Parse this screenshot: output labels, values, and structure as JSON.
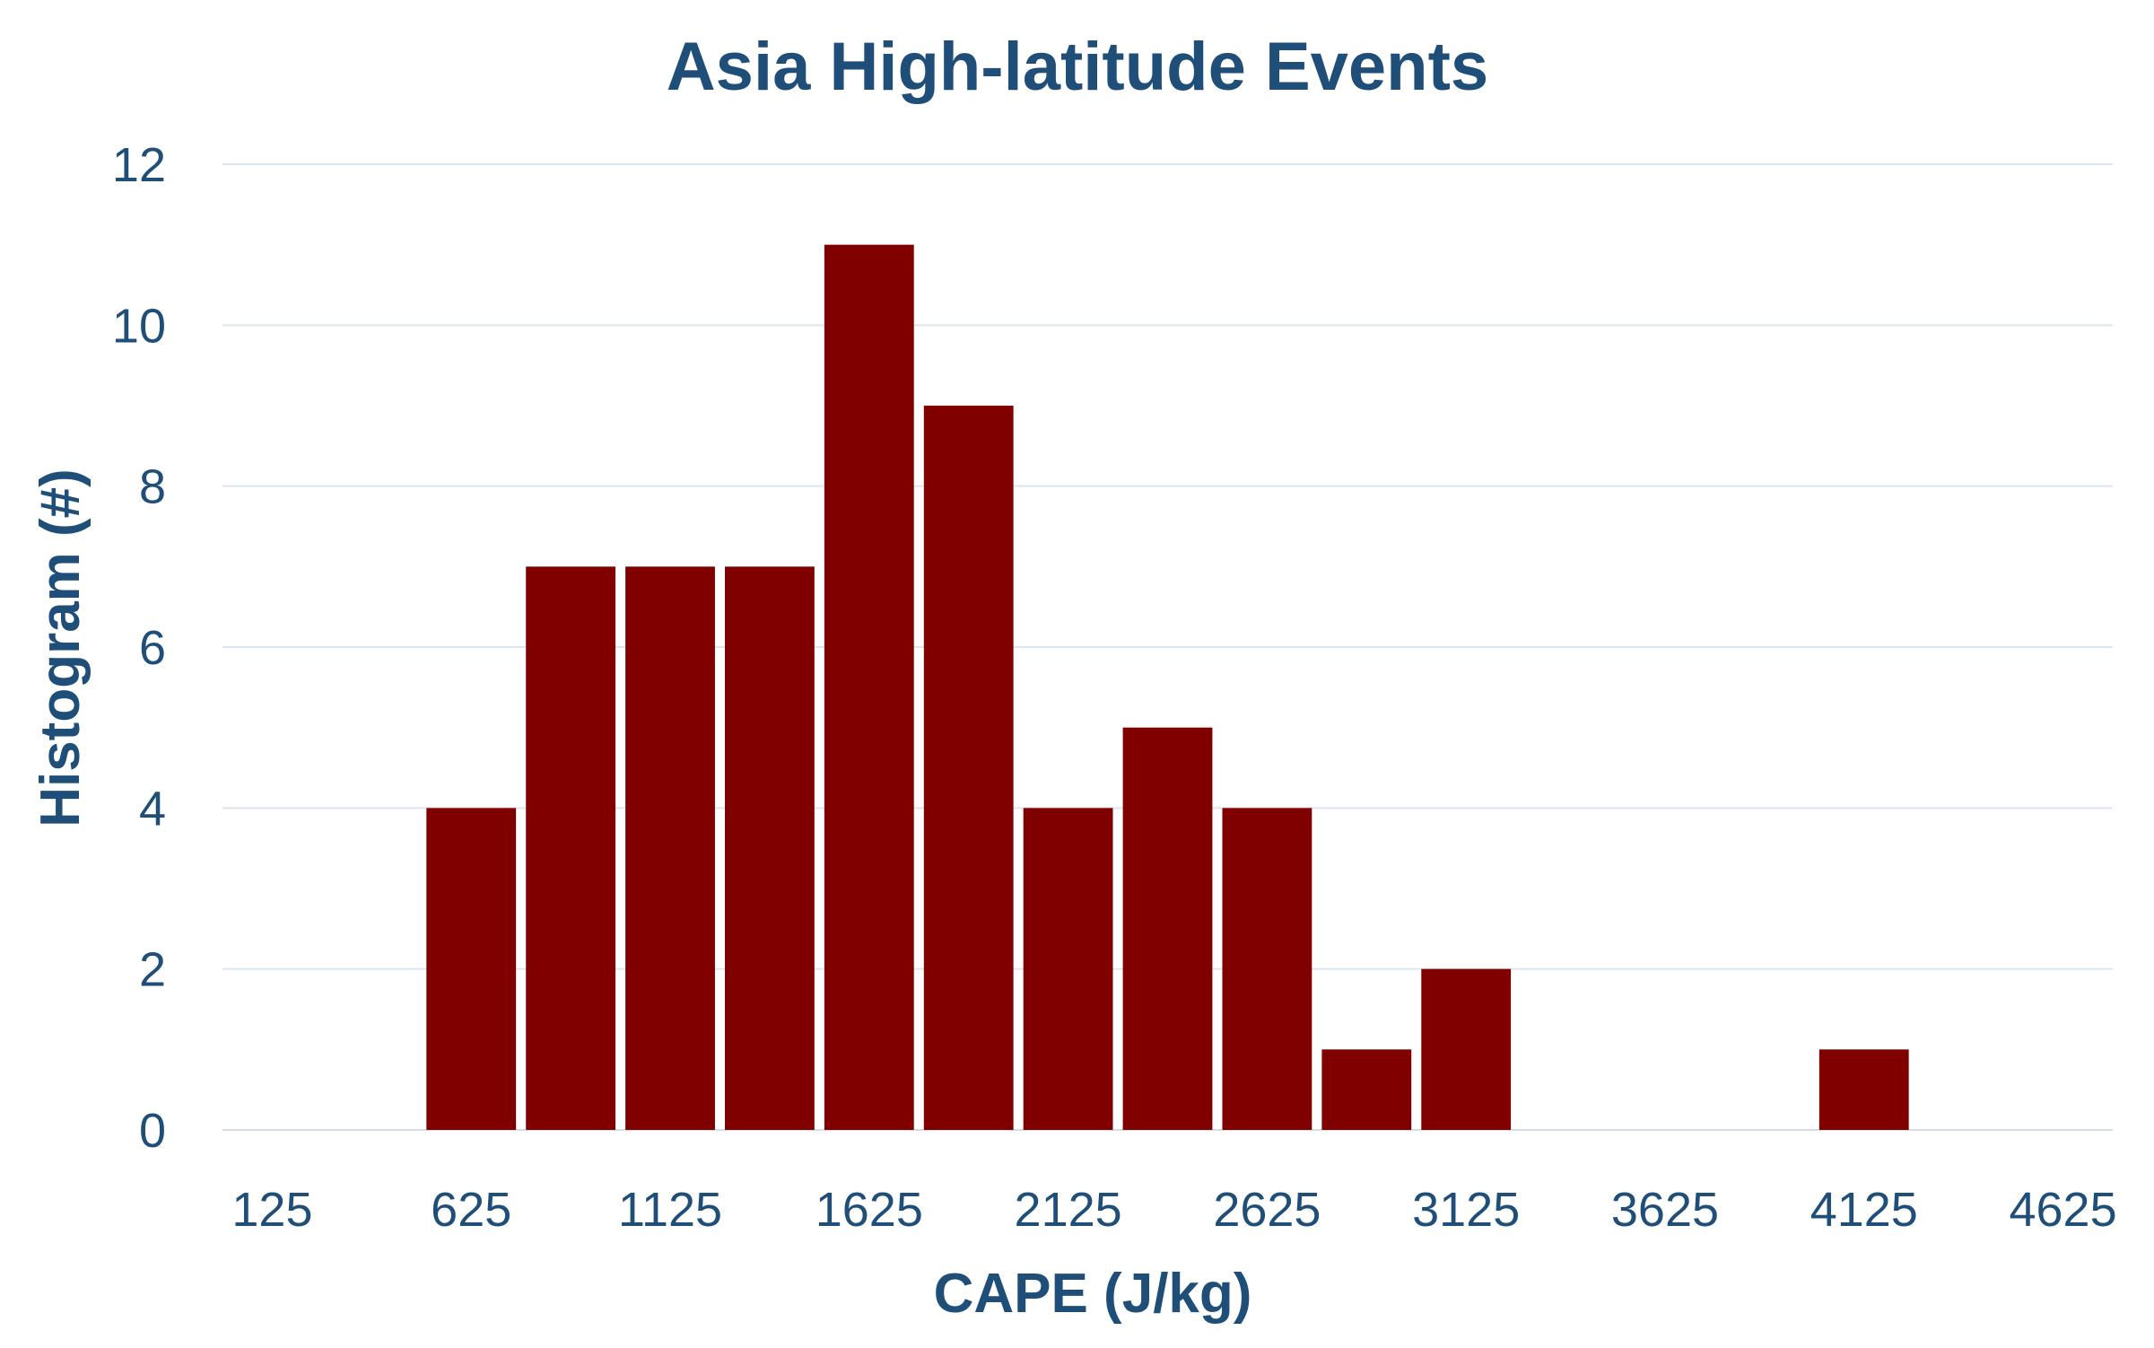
{
  "chart_data": {
    "type": "bar",
    "title": "Asia High-latitude Events",
    "xlabel": "CAPE (J/kg)",
    "ylabel": "Histogram (#)",
    "ylim": [
      0,
      12
    ],
    "yticks": [
      0,
      2,
      4,
      6,
      8,
      10,
      12
    ],
    "x_tick_labels": [
      "125",
      "625",
      "1125",
      "1625",
      "2125",
      "2625",
      "3125",
      "3625",
      "4125",
      "4625"
    ],
    "categories": [
      "125",
      "375",
      "625",
      "875",
      "1125",
      "1375",
      "1625",
      "1875",
      "2125",
      "2375",
      "2625",
      "2875",
      "3125",
      "3375",
      "3625",
      "3875",
      "4125",
      "4375",
      "4625"
    ],
    "values": [
      0,
      0,
      4,
      7,
      7,
      7,
      11,
      9,
      4,
      5,
      4,
      1,
      2,
      0,
      0,
      0,
      1,
      0,
      0
    ],
    "bar_color": "#800000",
    "text_color": "#1f4e79",
    "grid": true,
    "legend": "none"
  }
}
